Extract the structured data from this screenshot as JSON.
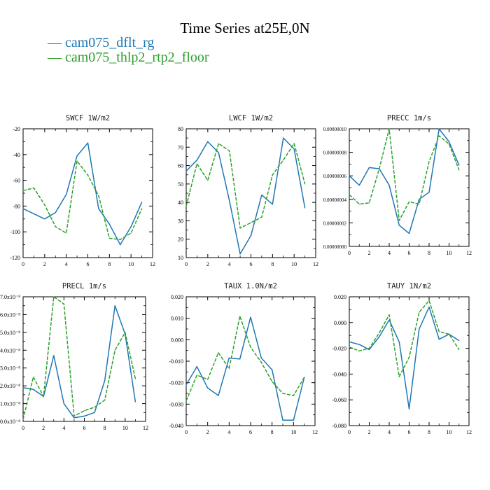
{
  "header": {
    "title": "Time Series at25E,0N"
  },
  "legend": [
    {
      "label": "cam075_dflt_rg",
      "color": "#1f77b4",
      "line": "—"
    },
    {
      "label": "cam075_thlp2_rtp2_floor",
      "color": "#2ca02c",
      "line": "—"
    }
  ],
  "colors": {
    "series1": "#1f77b4",
    "series2": "#2ca02c"
  },
  "chart_data": [
    {
      "type": "line",
      "title": "SWCF   1W/m2",
      "x": [
        0,
        1,
        2,
        3,
        4,
        5,
        6,
        7,
        8,
        9,
        10,
        11
      ],
      "xlim": [
        0,
        12
      ],
      "ylim": [
        -120,
        -20
      ],
      "xticks": [
        0,
        2,
        4,
        6,
        8,
        10,
        12
      ],
      "yticks": [
        -120,
        -100,
        -80,
        -60,
        -40,
        -20
      ],
      "ytick_labels": [
        "-120",
        "-100",
        "-80",
        "-60",
        "-40",
        "-20"
      ],
      "series": [
        {
          "name": "cam075_dflt_rg",
          "values": [
            -82,
            -86,
            -90,
            -85,
            -71,
            -41,
            -31,
            -82,
            -94,
            -110,
            -96,
            -77
          ]
        },
        {
          "name": "cam075_thlp2_rtp2_floor",
          "values": [
            -68,
            -66,
            -79,
            -96,
            -101,
            -45,
            -56,
            -72,
            -105,
            -106,
            -101,
            -82
          ]
        }
      ]
    },
    {
      "type": "line",
      "title": "LWCF   1W/m2",
      "x": [
        0,
        1,
        2,
        3,
        4,
        5,
        6,
        7,
        8,
        9,
        10,
        11
      ],
      "xlim": [
        0,
        12
      ],
      "ylim": [
        10,
        80
      ],
      "xticks": [
        0,
        2,
        4,
        6,
        8,
        10,
        12
      ],
      "yticks": [
        10,
        20,
        30,
        40,
        50,
        60,
        70,
        80
      ],
      "ytick_labels": [
        "10",
        "20",
        "30",
        "40",
        "50",
        "60",
        "70",
        "80"
      ],
      "series": [
        {
          "name": "cam075_dflt_rg",
          "values": [
            57,
            63,
            73,
            67,
            41,
            12,
            22,
            44,
            39,
            75,
            69,
            37
          ]
        },
        {
          "name": "cam075_thlp2_rtp2_floor",
          "values": [
            38,
            61,
            52,
            72,
            68,
            26,
            29,
            32,
            55,
            63,
            72,
            50
          ]
        }
      ]
    },
    {
      "type": "line",
      "title": "PRECC   1m/s",
      "x": [
        0,
        1,
        2,
        3,
        4,
        5,
        6,
        7,
        8,
        9,
        10,
        11
      ],
      "xlim": [
        0,
        12
      ],
      "ylim": [
        0,
        1e-07
      ],
      "xticks": [
        0,
        2,
        4,
        6,
        8,
        10,
        12
      ],
      "yticks": [
        0,
        2e-08,
        4e-08,
        6e-08,
        8e-08,
        1e-07
      ],
      "ytick_labels": [
        "0.00000000",
        "0.00000002",
        "0.00000004",
        "0.00000006",
        "0.00000008",
        "0.00000010"
      ],
      "series": [
        {
          "name": "cam075_dflt_rg",
          "values": [
            6e-08,
            5.2e-08,
            6.7e-08,
            6.6e-08,
            5.2e-08,
            1.8e-08,
            1.1e-08,
            4e-08,
            4.6e-08,
            1e-07,
            8.9e-08,
            6.9e-08
          ]
        },
        {
          "name": "cam075_thlp2_rtp2_floor",
          "values": [
            4.4e-08,
            3.6e-08,
            3.7e-08,
            6.6e-08,
            1e-07,
            2.2e-08,
            3.8e-08,
            3.6e-08,
            7.2e-08,
            9.4e-08,
            8.7e-08,
            6.5e-08
          ]
        }
      ]
    },
    {
      "type": "line",
      "title": "PRECL   1m/s",
      "x": [
        0,
        1,
        2,
        3,
        4,
        5,
        6,
        7,
        8,
        9,
        10,
        11
      ],
      "xlim": [
        0,
        12
      ],
      "ylim": [
        0,
        7
      ],
      "xticks": [
        0,
        2,
        4,
        6,
        8,
        10,
        12
      ],
      "yticks": [
        0,
        1,
        2,
        3,
        4,
        5,
        6,
        7
      ],
      "ytick_labels": [
        "0.0x10⁻⁸",
        "1.0x10⁻⁸",
        "2.0x10⁻⁸",
        "3.0x10⁻⁸",
        "4.0x10⁻⁸",
        "5.0x10⁻⁸",
        "6.0x10⁻⁸",
        "7.0x10⁻⁸"
      ],
      "series": [
        {
          "name": "cam075_dflt_rg",
          "values": [
            1.9,
            1.8,
            1.4,
            3.7,
            1.0,
            0.2,
            0.3,
            0.5,
            2.3,
            6.5,
            4.9,
            1.1
          ]
        },
        {
          "name": "cam075_thlp2_rtp2_floor",
          "values": [
            0.1,
            2.5,
            1.4,
            7.0,
            6.6,
            0.3,
            0.6,
            0.8,
            1.2,
            4.0,
            5.0,
            2.4
          ]
        }
      ]
    },
    {
      "type": "line",
      "title": "TAUX   1.0N/m2",
      "x": [
        0,
        1,
        2,
        3,
        4,
        5,
        6,
        7,
        8,
        9,
        10,
        11
      ],
      "xlim": [
        0,
        12
      ],
      "ylim": [
        -0.04,
        0.02
      ],
      "xticks": [
        0,
        2,
        4,
        6,
        8,
        10,
        12
      ],
      "yticks": [
        -0.04,
        -0.03,
        -0.02,
        -0.01,
        0,
        0.01,
        0.02
      ],
      "ytick_labels": [
        "-0.040",
        "-0.030",
        "-0.020",
        "-0.010",
        "0.000",
        "0.010",
        "0.020"
      ],
      "series": [
        {
          "name": "cam075_dflt_rg",
          "values": [
            -0.021,
            -0.0125,
            -0.0225,
            -0.026,
            -0.0085,
            -0.009,
            0.0105,
            -0.0085,
            -0.014,
            -0.0375,
            -0.0375,
            -0.0175
          ]
        },
        {
          "name": "cam075_thlp2_rtp2_floor",
          "values": [
            -0.0285,
            -0.0165,
            -0.0185,
            -0.006,
            -0.0135,
            0.011,
            -0.0035,
            -0.0105,
            -0.0195,
            -0.025,
            -0.026,
            -0.0175
          ]
        }
      ]
    },
    {
      "type": "line",
      "title": "TAUY   1N/m2",
      "x": [
        0,
        1,
        2,
        3,
        4,
        5,
        6,
        7,
        8,
        9,
        10,
        11
      ],
      "xlim": [
        0,
        12
      ],
      "ylim": [
        -0.08,
        0.02
      ],
      "xticks": [
        0,
        2,
        4,
        6,
        8,
        10,
        12
      ],
      "yticks": [
        -0.08,
        -0.06,
        -0.04,
        -0.02,
        0,
        0.02
      ],
      "ytick_labels": [
        "-0.080",
        "-0.060",
        "-0.040",
        "-0.020",
        "0.000",
        "0.020"
      ],
      "series": [
        {
          "name": "cam075_dflt_rg",
          "values": [
            -0.015,
            -0.017,
            -0.021,
            -0.011,
            0.002,
            -0.015,
            -0.067,
            -0.005,
            0.012,
            -0.013,
            -0.009,
            -0.014
          ]
        },
        {
          "name": "cam075_thlp2_rtp2_floor",
          "values": [
            -0.019,
            -0.022,
            -0.02,
            -0.008,
            0.006,
            -0.042,
            -0.027,
            0.008,
            0.017,
            -0.007,
            -0.009,
            -0.021
          ]
        }
      ]
    }
  ]
}
